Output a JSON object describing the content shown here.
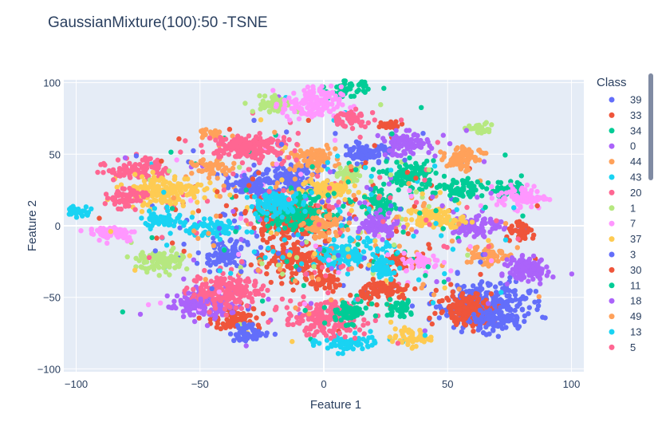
{
  "chart_data": {
    "type": "scatter",
    "title": "GaussianMixture(100):50 -TSNE",
    "xlabel": "Feature 1",
    "ylabel": "Feature 2",
    "xlim": [
      -105,
      105
    ],
    "ylim": [
      -102,
      102
    ],
    "xticks": [
      -100,
      -50,
      0,
      50,
      100
    ],
    "yticks": [
      -100,
      -50,
      0,
      50,
      100
    ],
    "grid": true,
    "legend": {
      "title": "Class",
      "placement": "right"
    },
    "series": [
      {
        "name": "39",
        "color": "#636efa",
        "clusters": [
          [
            -12,
            32,
            6,
            5
          ],
          [
            65,
            -55,
            9,
            8
          ],
          [
            -40,
            -20,
            5,
            5
          ],
          [
            20,
            52,
            4,
            3
          ]
        ]
      },
      {
        "name": "33",
        "color": "#EF553B",
        "clusters": [
          [
            -10,
            -25,
            7,
            6
          ],
          [
            58,
            -58,
            6,
            6
          ],
          [
            -35,
            -65,
            5,
            4
          ],
          [
            30,
            -25,
            4,
            3
          ],
          [
            27,
            70,
            3,
            2
          ]
        ]
      },
      {
        "name": "34",
        "color": "#00cc96",
        "clusters": [
          [
            35,
            35,
            5,
            5
          ],
          [
            10,
            95,
            4,
            3
          ],
          [
            22,
            15,
            4,
            4
          ],
          [
            75,
            25,
            4,
            3
          ]
        ]
      },
      {
        "name": "0",
        "color": "#ab63fa",
        "clusters": [
          [
            33,
            57,
            5,
            4
          ],
          [
            82,
            -30,
            4,
            4
          ],
          [
            62,
            0,
            5,
            4
          ],
          [
            -45,
            -55,
            6,
            5
          ]
        ]
      },
      {
        "name": "44",
        "color": "#FFA15A",
        "clusters": [
          [
            -5,
            47,
            5,
            4
          ],
          [
            58,
            50,
            4,
            3
          ],
          [
            -45,
            65,
            3,
            2
          ],
          [
            65,
            -20,
            4,
            4
          ]
        ]
      },
      {
        "name": "43",
        "color": "#19d3f3",
        "clusters": [
          [
            -45,
            -2,
            5,
            3
          ],
          [
            12,
            -20,
            7,
            5
          ],
          [
            10,
            -82,
            6,
            3
          ],
          [
            -100,
            10,
            3,
            2
          ]
        ]
      },
      {
        "name": "20",
        "color": "#FF6692",
        "clusters": [
          [
            -25,
            55,
            6,
            4
          ],
          [
            0,
            -65,
            8,
            6
          ],
          [
            -40,
            -45,
            7,
            6
          ],
          [
            -75,
            40,
            6,
            4
          ]
        ]
      },
      {
        "name": "1",
        "color": "#B6E880",
        "clusters": [
          [
            -20,
            85,
            4,
            3
          ],
          [
            62,
            68,
            3,
            2
          ],
          [
            -65,
            -25,
            5,
            4
          ],
          [
            10,
            35,
            3,
            3
          ]
        ]
      },
      {
        "name": "7",
        "color": "#FF97FF",
        "clusters": [
          [
            -5,
            85,
            6,
            6
          ],
          [
            80,
            20,
            5,
            4
          ],
          [
            -85,
            -5,
            5,
            3
          ],
          [
            40,
            -25,
            4,
            3
          ]
        ]
      },
      {
        "name": "37",
        "color": "#FECB52",
        "clusters": [
          [
            -65,
            25,
            8,
            5
          ],
          [
            45,
            5,
            6,
            4
          ],
          [
            35,
            -78,
            4,
            3
          ],
          [
            0,
            25,
            5,
            4
          ]
        ]
      },
      {
        "name": "3",
        "color": "#636efa",
        "clusters": [
          [
            -30,
            28,
            5,
            4
          ],
          [
            15,
            50,
            3,
            3
          ],
          [
            70,
            -65,
            5,
            4
          ],
          [
            -30,
            -75,
            4,
            3
          ]
        ]
      },
      {
        "name": "30",
        "color": "#EF553B",
        "clusters": [
          [
            -15,
            5,
            7,
            7
          ],
          [
            25,
            -45,
            5,
            4
          ],
          [
            80,
            -5,
            3,
            3
          ],
          [
            0,
            -40,
            4,
            3
          ]
        ]
      },
      {
        "name": "11",
        "color": "#00cc96",
        "clusters": [
          [
            30,
            -58,
            3,
            3
          ],
          [
            -10,
            10,
            6,
            6
          ],
          [
            10,
            -60,
            4,
            4
          ],
          [
            55,
            25,
            4,
            4
          ]
        ]
      },
      {
        "name": "18",
        "color": "#ab63fa",
        "clusters": [
          [
            83,
            -30,
            4,
            4
          ],
          [
            -55,
            -55,
            4,
            3
          ],
          [
            22,
            0,
            4,
            4
          ]
        ]
      },
      {
        "name": "49",
        "color": "#FFA15A",
        "clusters": [
          [
            0,
            0,
            4,
            4
          ],
          [
            -45,
            40,
            4,
            3
          ],
          [
            55,
            45,
            3,
            3
          ]
        ]
      },
      {
        "name": "13",
        "color": "#19d3f3",
        "clusters": [
          [
            -20,
            15,
            5,
            4
          ],
          [
            25,
            -30,
            3,
            3
          ],
          [
            -65,
            5,
            4,
            3
          ]
        ]
      },
      {
        "name": "5",
        "color": "#FF6692",
        "clusters": [
          [
            -35,
            55,
            6,
            4
          ],
          [
            -80,
            20,
            4,
            4
          ],
          [
            10,
            75,
            4,
            3
          ]
        ]
      }
    ]
  }
}
